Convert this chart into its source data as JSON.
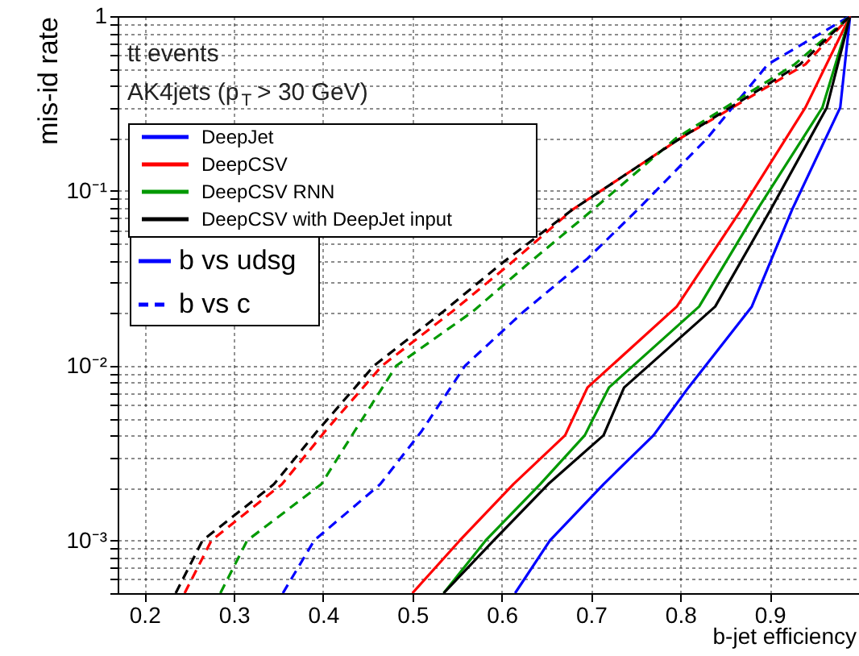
{
  "chart_data": {
    "type": "line",
    "xlabel": "b-jet efficiency",
    "ylabel": "mis-id rate",
    "annotations": [
      "tt events",
      "AK4jets (p$_{T}$ > 30 GeV)",
      "b vs udsg",
      "b vs c"
    ],
    "log": "y",
    "grid": true,
    "legend": "top left",
    "xlim": [
      0.17,
      1.0
    ],
    "xticks": [
      0.2,
      0.3,
      0.4,
      0.5,
      0.6,
      0.7,
      0.8,
      0.9
    ],
    "ylim": [
      0.0005,
      1
    ],
    "yticks": [
      {
        "value": 0.0005,
        "label": null
      },
      {
        "value": 0.0006,
        "label": null
      },
      {
        "value": 0.0007,
        "label": null
      },
      {
        "value": 0.0008,
        "label": null
      },
      {
        "value": 0.0009,
        "label": null
      },
      {
        "value": 0.001,
        "label": "10⁻³"
      },
      {
        "value": 0.002,
        "label": null
      },
      {
        "value": 0.003,
        "label": null
      },
      {
        "value": 0.004,
        "label": null
      },
      {
        "value": 0.005,
        "label": null
      },
      {
        "value": 0.006,
        "label": null
      },
      {
        "value": 0.007,
        "label": null
      },
      {
        "value": 0.008,
        "label": null
      },
      {
        "value": 0.009,
        "label": null
      },
      {
        "value": 0.01,
        "label": "10⁻²"
      },
      {
        "value": 0.02,
        "label": null
      },
      {
        "value": 0.03,
        "label": null
      },
      {
        "value": 0.04,
        "label": null
      },
      {
        "value": 0.05,
        "label": null
      },
      {
        "value": 0.06,
        "label": null
      },
      {
        "value": 0.07,
        "label": null
      },
      {
        "value": 0.08,
        "label": null
      },
      {
        "value": 0.09,
        "label": null
      },
      {
        "value": 0.1,
        "label": "10⁻¹"
      },
      {
        "value": 0.2,
        "label": null
      },
      {
        "value": 0.3,
        "label": null
      },
      {
        "value": 0.4,
        "label": null
      },
      {
        "value": 0.5,
        "label": null
      },
      {
        "value": 0.6,
        "label": null
      },
      {
        "value": 0.7,
        "label": null
      },
      {
        "value": 0.8,
        "label": null
      },
      {
        "value": 0.9,
        "label": null
      },
      {
        "value": 1,
        "label": "1"
      }
    ],
    "series": [
      {
        "name": "DeepJet",
        "color": "#0000ff",
        "line_style": "solid",
        "x": [
          0.615,
          0.654,
          0.714,
          0.77,
          0.809,
          0.88,
          0.925,
          0.979,
          0.99
        ],
        "values": [
          0.0005,
          0.001,
          0.0021,
          0.004,
          0.0075,
          0.0218,
          0.078,
          0.3,
          1
        ]
      },
      {
        "name": "DeepCSV",
        "color": "#ff0000",
        "line_style": "solid",
        "x": [
          0.5,
          0.553,
          0.613,
          0.671,
          0.696,
          0.796,
          0.868,
          0.94,
          0.99
        ],
        "values": [
          0.0005,
          0.001,
          0.0021,
          0.004,
          0.0075,
          0.0218,
          0.078,
          0.3,
          1
        ]
      },
      {
        "name": "DeepCSV RNN",
        "color": "#009900",
        "line_style": "solid",
        "x": [
          0.535,
          0.582,
          0.643,
          0.693,
          0.72,
          0.821,
          0.886,
          0.959,
          0.99
        ],
        "values": [
          0.0005,
          0.001,
          0.0021,
          0.004,
          0.0075,
          0.0218,
          0.078,
          0.3,
          1
        ]
      },
      {
        "name": "DeepCSV with DeepJet input",
        "color": "#000000",
        "line_style": "solid",
        "x": [
          0.535,
          0.591,
          0.652,
          0.714,
          0.737,
          0.839,
          0.901,
          0.964,
          0.99
        ],
        "values": [
          0.0005,
          0.001,
          0.0021,
          0.004,
          0.0075,
          0.0218,
          0.078,
          0.3,
          1
        ]
      },
      {
        "color": "#0000ff",
        "line_style": "dashed",
        "x": [
          0.355,
          0.39,
          0.464,
          0.51,
          0.559,
          0.625,
          0.696,
          0.752,
          0.83,
          0.898,
          0.99
        ],
        "values": [
          0.0005,
          0.001,
          0.0021,
          0.0042,
          0.01,
          0.0205,
          0.041,
          0.078,
          0.2,
          0.53,
          1
        ]
      },
      {
        "color": "#ff0000",
        "line_style": "dashed",
        "x": [
          0.245,
          0.275,
          0.354,
          0.402,
          0.466,
          0.545,
          0.61,
          0.679,
          0.8,
          0.94,
          0.99
        ],
        "values": [
          0.0005,
          0.001,
          0.0021,
          0.0042,
          0.01,
          0.0205,
          0.0385,
          0.078,
          0.2,
          0.53,
          1
        ]
      },
      {
        "color": "#009900",
        "line_style": "dashed",
        "x": [
          0.285,
          0.315,
          0.398,
          0.435,
          0.482,
          0.568,
          0.63,
          0.702,
          0.795,
          0.928,
          0.99
        ],
        "values": [
          0.0005,
          0.001,
          0.0021,
          0.0042,
          0.01,
          0.0205,
          0.0385,
          0.078,
          0.2,
          0.53,
          1
        ]
      },
      {
        "color": "#000000",
        "line_style": "dashed",
        "x": [
          0.235,
          0.265,
          0.345,
          0.393,
          0.457,
          0.535,
          0.6,
          0.679,
          0.8,
          0.934,
          0.99
        ],
        "values": [
          0.0005,
          0.001,
          0.0021,
          0.0042,
          0.01,
          0.0205,
          0.0385,
          0.078,
          0.2,
          0.53,
          1
        ]
      }
    ]
  }
}
